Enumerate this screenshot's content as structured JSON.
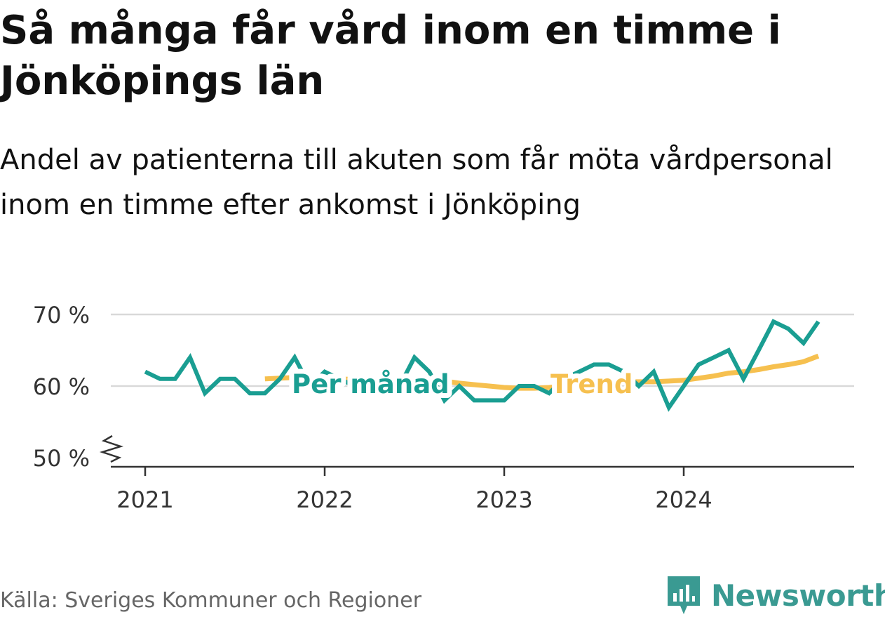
{
  "title": "Så många får vård inom en timme i Jönköpings län",
  "subtitle": "Andel av patienterna till akuten som får möta vårdpersonal inom en timme efter ankomst i Jönköping",
  "source": "Källa: Sveriges Kommuner och Regioner",
  "brand": {
    "name": "Newsworthy",
    "icon": "newsworthy-logo-icon",
    "color": "#3a9a92"
  },
  "chart_data": {
    "type": "line",
    "y_ticks": [
      {
        "value": 70,
        "label": "70 %"
      },
      {
        "value": 60,
        "label": "60 %"
      },
      {
        "value": 50,
        "label": "50 %"
      }
    ],
    "x_ticks": [
      {
        "value": 2021.0,
        "label": "2021"
      },
      {
        "value": 2022.0,
        "label": "2022"
      },
      {
        "value": 2023.0,
        "label": "2023"
      },
      {
        "value": 2024.0,
        "label": "2024"
      }
    ],
    "ylim": [
      50,
      70
    ],
    "y_axis_break": true,
    "grid": true,
    "series": [
      {
        "name": "Per månad",
        "color": "#1a9e92",
        "x": [
          2021.0,
          2021.083,
          2021.167,
          2021.25,
          2021.333,
          2021.417,
          2021.5,
          2021.583,
          2021.667,
          2021.75,
          2021.833,
          2021.917,
          2022.0,
          2022.083,
          2022.167,
          2022.25,
          2022.333,
          2022.417,
          2022.5,
          2022.583,
          2022.667,
          2022.75,
          2022.833,
          2022.917,
          2023.0,
          2023.083,
          2023.167,
          2023.25,
          2023.333,
          2023.417,
          2023.5,
          2023.583,
          2023.667,
          2023.75,
          2023.833,
          2023.917,
          2024.0,
          2024.083,
          2024.167,
          2024.25,
          2024.333,
          2024.417,
          2024.5,
          2024.583,
          2024.667,
          2024.75
        ],
        "values": [
          62,
          61,
          61,
          64,
          59,
          61,
          61,
          59,
          59,
          61,
          64,
          60,
          62,
          61,
          60,
          59,
          61,
          60,
          64,
          62,
          58,
          60,
          58,
          58,
          58,
          60,
          60,
          59,
          61,
          62,
          63,
          63,
          62,
          60,
          62,
          57,
          60,
          63,
          64,
          65,
          61,
          65,
          69,
          68,
          66,
          69
        ]
      },
      {
        "name": "Trend",
        "color": "#f6c04f",
        "x": [
          2021.667,
          2021.75,
          2021.833,
          2021.917,
          2022.0,
          2022.083,
          2022.167,
          2022.25,
          2022.333,
          2022.417,
          2022.5,
          2022.583,
          2022.667,
          2022.75,
          2022.833,
          2022.917,
          2023.0,
          2023.083,
          2023.167,
          2023.25,
          2023.333,
          2023.417,
          2023.5,
          2023.583,
          2023.667,
          2023.75,
          2023.833,
          2023.917,
          2024.0,
          2024.083,
          2024.167,
          2024.25,
          2024.333,
          2024.417,
          2024.5,
          2024.583,
          2024.667,
          2024.75
        ],
        "values": [
          61,
          61.1,
          61.2,
          61.2,
          61.1,
          61,
          60.9,
          60.8,
          60.8,
          60.8,
          60.9,
          60.9,
          60.7,
          60.4,
          60.2,
          60,
          59.8,
          59.7,
          59.7,
          59.8,
          60,
          60.2,
          60.4,
          60.5,
          60.6,
          60.6,
          60.6,
          60.7,
          60.8,
          61.1,
          61.4,
          61.8,
          62,
          62.3,
          62.7,
          63,
          63.4,
          64.2
        ]
      }
    ],
    "annotations": [
      {
        "text": "Per månad",
        "x": 2022.3,
        "y": 60.2,
        "series": "Per månad"
      },
      {
        "text": "Trend",
        "x": 2023.5,
        "y": 60.2,
        "series": "Trend"
      }
    ]
  }
}
